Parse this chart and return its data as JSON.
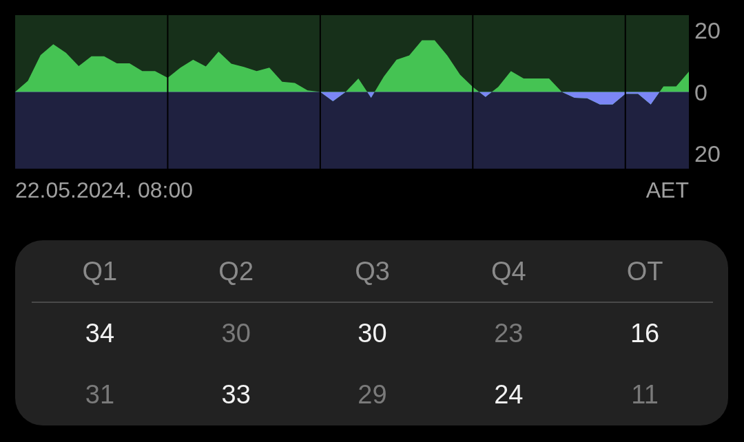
{
  "chart_data": [
    {
      "type": "area",
      "categories": [
        null,
        null,
        null,
        null,
        null,
        null,
        null,
        null,
        null,
        null,
        null,
        null,
        null,
        null,
        null,
        null,
        null,
        null,
        null,
        null,
        null,
        null,
        null,
        null,
        null,
        null,
        null,
        null,
        null,
        null,
        null,
        null,
        null,
        null,
        null,
        null,
        null,
        null,
        null,
        null,
        null,
        null,
        null,
        null,
        null,
        null,
        null,
        null,
        null,
        null,
        null,
        null,
        null,
        null
      ],
      "series": [
        {
          "color": "#45c353",
          "values": [
            0,
            3.6,
            12,
            15.5,
            12.7,
            8.4,
            11.6,
            11.6,
            9.3,
            9.3,
            6.8,
            6.8,
            4.6,
            7.9,
            10.5,
            8.3,
            13.1,
            9.2,
            8.1,
            6.8,
            7.9,
            3.3,
            2.9,
            0.5,
            0,
            -3,
            0,
            4.4,
            -1.9,
            5,
            10.5,
            11.9,
            16.8,
            16.8,
            11.8,
            5.6,
            1.6,
            -1.6,
            1.6,
            6.8,
            4.4,
            4.4,
            4.4,
            0,
            -1.9,
            -2.1,
            -4.1,
            -4.1,
            -0.6,
            -0.6,
            -4.1,
            1.8,
            1.8,
            6.6
          ]
        }
      ],
      "ylim": [
        -25,
        25
      ],
      "yticks": [
        {
          "value": -20,
          "label": "20"
        },
        0,
        20
      ],
      "tick_labels": "y",
      "grid": "x",
      "annotations": [
        "22.05.2024. 08:00",
        "AET"
      ]
    },
    {
      "type": "other",
      "categories": [
        "Q1",
        "Q2",
        "Q3",
        "Q4",
        "OT"
      ],
      "series": [
        {
          "values": [
            34,
            30,
            30,
            23,
            16
          ]
        },
        {
          "values": [
            31,
            33,
            29,
            24,
            11
          ]
        }
      ],
      "data_labels": true
    }
  ]
}
